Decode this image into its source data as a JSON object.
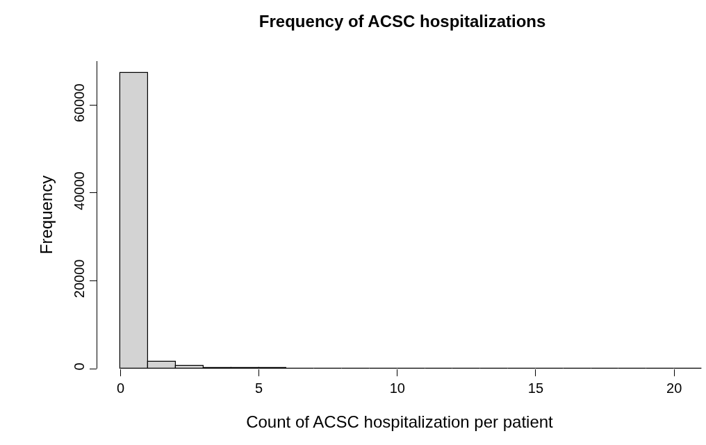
{
  "chart_data": {
    "type": "histogram",
    "title": "Frequency of ACSC hospitalizations",
    "xlabel": "Count of ACSC hospitalization per patient",
    "ylabel": "Frequency",
    "bins": [
      0,
      1,
      2,
      3,
      4,
      5,
      6,
      7,
      8,
      9,
      10,
      11,
      12,
      13,
      14,
      15,
      16,
      17,
      18,
      19,
      20,
      21
    ],
    "values": [
      67300,
      1600,
      700,
      200,
      100,
      100,
      0,
      0,
      0,
      0,
      0,
      0,
      0,
      0,
      0,
      0,
      0,
      0,
      0,
      0,
      0
    ],
    "color": "#d3d3d3",
    "xlim": [
      -0.84,
      21
    ],
    "xticks": [
      0,
      5,
      10,
      15,
      20
    ],
    "ylim": [
      0,
      70000
    ],
    "yticks": [
      0,
      20000,
      40000,
      60000
    ],
    "legend": false
  }
}
